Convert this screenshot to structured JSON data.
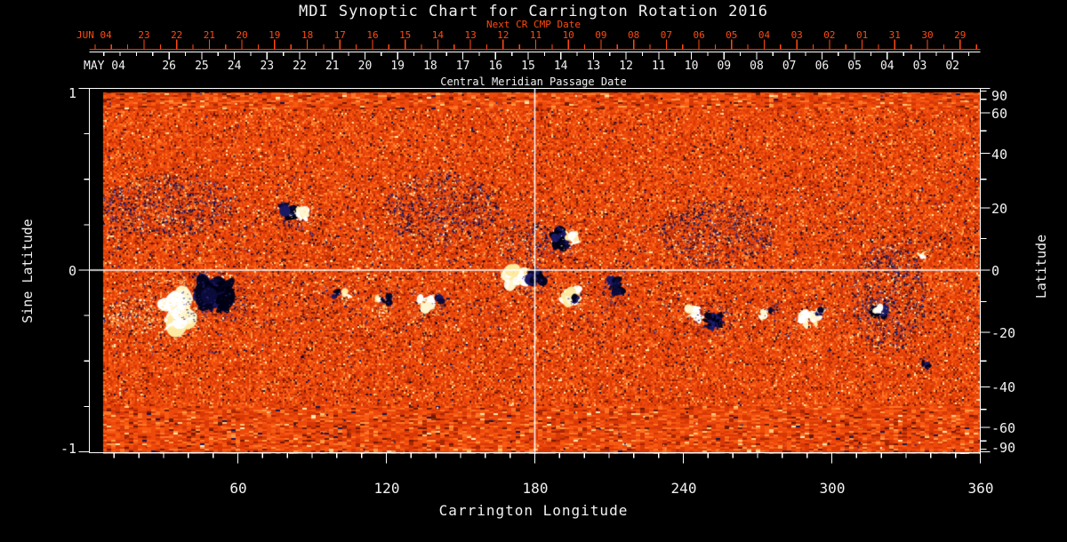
{
  "title": "MDI Synoptic Chart for Carrington Rotation 2016",
  "colors": {
    "background": "#000000",
    "text": "#f2f2f2",
    "red_axis": "#ff4a10",
    "frame": "#ffffff",
    "map_base_orange": "#ec490b",
    "negative_polarity": "#0b0b3a",
    "positive_polarity": "#ffffff"
  },
  "top_axis": {
    "next_cr_label": "Next CR CMP Date",
    "red_month_label": "JUN 04",
    "red_days": [
      "23",
      "22",
      "21",
      "20",
      "19",
      "18",
      "17",
      "16",
      "15",
      "14",
      "13",
      "12",
      "11",
      "10",
      "09",
      "08",
      "07",
      "06",
      "05",
      "04",
      "03",
      "02",
      "01",
      "31",
      "30",
      "29"
    ],
    "white_month_label": "MAY 04",
    "white_days": [
      "26",
      "25",
      "24",
      "23",
      "22",
      "21",
      "20",
      "19",
      "18",
      "17",
      "16",
      "15",
      "14",
      "13",
      "12",
      "11",
      "10",
      "09",
      "08",
      "07",
      "06",
      "05",
      "04",
      "03",
      "02"
    ],
    "cmp_label": "Central Meridian Passage Date"
  },
  "left_axis": {
    "label": "Sine Latitude",
    "ticks": [
      {
        "label": "1",
        "value": 1
      },
      {
        "label": "0",
        "value": 0
      },
      {
        "label": "-1",
        "value": -1
      }
    ]
  },
  "right_axis": {
    "label": "Latitude",
    "ticks": [
      {
        "label": "90",
        "value": 90
      },
      {
        "label": "60",
        "value": 60
      },
      {
        "label": "40",
        "value": 40
      },
      {
        "label": "20",
        "value": 20
      },
      {
        "label": "0",
        "value": 0
      },
      {
        "label": "-20",
        "value": -20
      },
      {
        "label": "-40",
        "value": -40
      },
      {
        "label": "-60",
        "value": -60
      },
      {
        "label": "-90",
        "value": -90
      }
    ]
  },
  "bottom_axis": {
    "label": "Carrington Longitude",
    "ticks": [
      {
        "label": "60",
        "value": 60
      },
      {
        "label": "120",
        "value": 120
      },
      {
        "label": "180",
        "value": 180
      },
      {
        "label": "240",
        "value": 240
      },
      {
        "label": "300",
        "value": 300
      },
      {
        "label": "360",
        "value": 360
      }
    ]
  },
  "chart_data": {
    "type": "heatmap",
    "title": "MDI Synoptic Chart for Carrington Rotation 2016",
    "xlabel": "Carrington Longitude",
    "xlim": [
      0,
      360
    ],
    "ylabel_left": "Sine Latitude",
    "ylim": [
      -1,
      1
    ],
    "ylabel_right": "Latitude",
    "grid": false,
    "crosshair": {
      "longitude": 180,
      "sine_latitude": 0
    },
    "missing_data_black": {
      "left_longitude_band_deg": 6,
      "top_sine_band": 0.03
    },
    "active_regions": [
      {
        "lon": 35,
        "sine_lat": -0.22,
        "w_deg": 15.1,
        "h_sin": 0.235,
        "polarity": "positive",
        "diffuse": false
      },
      {
        "lon": 50,
        "sine_lat": -0.14,
        "w_deg": 17.2,
        "h_sin": 0.176,
        "polarity": "negative",
        "diffuse": false
      },
      {
        "lon": 32,
        "sine_lat": 0.36,
        "w_deg": 57.5,
        "h_sin": 0.342,
        "polarity": "negative",
        "diffuse": true
      },
      {
        "lon": 18,
        "sine_lat": -0.25,
        "w_deg": 21.6,
        "h_sin": 0.196,
        "polarity": "positive",
        "diffuse": true
      },
      {
        "lon": 81,
        "sine_lat": 0.32,
        "w_deg": 7.2,
        "h_sin": 0.117,
        "polarity": "negative",
        "diffuse": false
      },
      {
        "lon": 86,
        "sine_lat": 0.32,
        "w_deg": 6.5,
        "h_sin": 0.098,
        "polarity": "positive",
        "diffuse": false
      },
      {
        "lon": 142,
        "sine_lat": 0.34,
        "w_deg": 46.7,
        "h_sin": 0.416,
        "polarity": "negative",
        "diffuse": true
      },
      {
        "lon": 100,
        "sine_lat": -0.13,
        "w_deg": 3.6,
        "h_sin": 0.059,
        "polarity": "negative",
        "diffuse": false
      },
      {
        "lon": 104,
        "sine_lat": -0.13,
        "w_deg": 4.3,
        "h_sin": 0.059,
        "polarity": "positive",
        "diffuse": false
      },
      {
        "lon": 117,
        "sine_lat": -0.16,
        "w_deg": 3.6,
        "h_sin": 0.049,
        "polarity": "positive",
        "diffuse": false
      },
      {
        "lon": 120,
        "sine_lat": -0.16,
        "w_deg": 4.7,
        "h_sin": 0.064,
        "polarity": "negative",
        "diffuse": false
      },
      {
        "lon": 118,
        "sine_lat": -0.23,
        "w_deg": 6.5,
        "h_sin": 0.088,
        "polarity": "positive",
        "diffuse": true
      },
      {
        "lon": 136,
        "sine_lat": -0.18,
        "w_deg": 7.2,
        "h_sin": 0.108,
        "polarity": "positive",
        "diffuse": false
      },
      {
        "lon": 141,
        "sine_lat": -0.16,
        "w_deg": 4.3,
        "h_sin": 0.059,
        "polarity": "negative",
        "diffuse": false
      },
      {
        "lon": 173,
        "sine_lat": -0.04,
        "w_deg": 10.8,
        "h_sin": 0.127,
        "polarity": "positive",
        "diffuse": false
      },
      {
        "lon": 181,
        "sine_lat": -0.04,
        "w_deg": 7.9,
        "h_sin": 0.098,
        "polarity": "negative",
        "diffuse": false
      },
      {
        "lon": 174,
        "sine_lat": 0.16,
        "w_deg": 21.6,
        "h_sin": 0.245,
        "polarity": "negative",
        "diffuse": true
      },
      {
        "lon": 190,
        "sine_lat": 0.17,
        "w_deg": 7.9,
        "h_sin": 0.117,
        "polarity": "negative",
        "diffuse": false
      },
      {
        "lon": 195,
        "sine_lat": 0.17,
        "w_deg": 5.7,
        "h_sin": 0.088,
        "polarity": "positive",
        "diffuse": false
      },
      {
        "lon": 194,
        "sine_lat": -0.14,
        "w_deg": 8.6,
        "h_sin": 0.098,
        "polarity": "positive",
        "diffuse": false
      },
      {
        "lon": 196,
        "sine_lat": -0.16,
        "w_deg": 4.3,
        "h_sin": 0.059,
        "polarity": "negative",
        "diffuse": false
      },
      {
        "lon": 212,
        "sine_lat": -0.09,
        "w_deg": 5.7,
        "h_sin": 0.137,
        "polarity": "negative",
        "diffuse": false
      },
      {
        "lon": 253,
        "sine_lat": 0.2,
        "w_deg": 46.7,
        "h_sin": 0.367,
        "polarity": "negative",
        "diffuse": true
      },
      {
        "lon": 244,
        "sine_lat": -0.24,
        "w_deg": 7.9,
        "h_sin": 0.078,
        "polarity": "positive",
        "diffuse": false
      },
      {
        "lon": 252,
        "sine_lat": -0.28,
        "w_deg": 9.3,
        "h_sin": 0.108,
        "polarity": "negative",
        "diffuse": false
      },
      {
        "lon": 272,
        "sine_lat": -0.24,
        "w_deg": 5.0,
        "h_sin": 0.059,
        "polarity": "positive",
        "diffuse": false
      },
      {
        "lon": 275,
        "sine_lat": -0.22,
        "w_deg": 3.6,
        "h_sin": 0.049,
        "polarity": "negative",
        "diffuse": false
      },
      {
        "lon": 292,
        "sine_lat": -0.26,
        "w_deg": 10.8,
        "h_sin": 0.078,
        "polarity": "positive",
        "diffuse": false
      },
      {
        "lon": 295,
        "sine_lat": -0.23,
        "w_deg": 3.6,
        "h_sin": 0.049,
        "polarity": "negative",
        "diffuse": false
      },
      {
        "lon": 323,
        "sine_lat": -0.15,
        "w_deg": 30.5,
        "h_sin": 0.587,
        "polarity": "negative",
        "diffuse": true
      },
      {
        "lon": 319,
        "sine_lat": -0.23,
        "w_deg": 9.3,
        "h_sin": 0.078,
        "polarity": "negative",
        "diffuse": false
      },
      {
        "lon": 325,
        "sine_lat": 0.02,
        "w_deg": 5.0,
        "h_sin": 0.147,
        "polarity": "negative",
        "diffuse": true
      },
      {
        "lon": 318,
        "sine_lat": -0.22,
        "w_deg": 5.0,
        "h_sin": 0.049,
        "polarity": "positive",
        "diffuse": false
      },
      {
        "lon": 336,
        "sine_lat": 0.09,
        "w_deg": 4.3,
        "h_sin": 0.049,
        "polarity": "positive",
        "diffuse": false
      },
      {
        "lon": 338,
        "sine_lat": -0.51,
        "w_deg": 4.3,
        "h_sin": 0.059,
        "polarity": "negative",
        "diffuse": false
      }
    ]
  }
}
